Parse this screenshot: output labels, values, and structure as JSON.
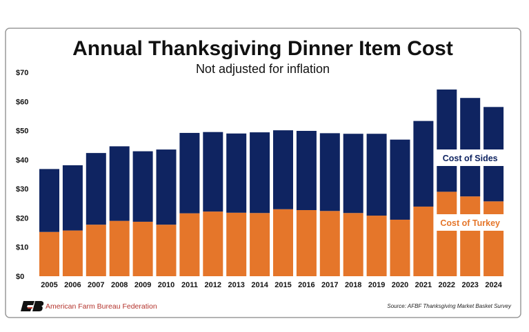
{
  "chart_data": {
    "type": "bar",
    "stacked": true,
    "title": "Annual Thanksgiving Dinner Item Cost",
    "subtitle": "Not adjusted for inflation",
    "xlabel": "",
    "ylabel": "",
    "ylim": [
      0,
      70
    ],
    "yticks": [
      "$0",
      "$10",
      "$20",
      "$30",
      "$40",
      "$50",
      "$60",
      "$70"
    ],
    "grid": false,
    "categories": [
      "2005",
      "2006",
      "2007",
      "2008",
      "2009",
      "2010",
      "2011",
      "2012",
      "2013",
      "2014",
      "2015",
      "2016",
      "2017",
      "2018",
      "2019",
      "2020",
      "2021",
      "2022",
      "2023",
      "2024"
    ],
    "series": [
      {
        "name": "Cost of Turkey",
        "color": "#e5762a",
        "values": [
          15.2,
          15.7,
          17.7,
          19.0,
          18.7,
          17.7,
          21.6,
          22.2,
          21.8,
          21.7,
          23.0,
          22.7,
          22.4,
          21.7,
          20.8,
          19.4,
          23.9,
          29.0,
          27.4,
          25.7
        ]
      },
      {
        "name": "Cost of Sides",
        "color": "#0f2461",
        "values": [
          21.6,
          22.4,
          24.6,
          25.6,
          24.2,
          25.8,
          27.6,
          27.3,
          27.2,
          27.7,
          27.1,
          27.2,
          26.7,
          27.2,
          28.1,
          27.5,
          29.4,
          35.1,
          33.8,
          32.4
        ]
      }
    ],
    "totals": [
      36.8,
      38.1,
      42.3,
      44.6,
      42.9,
      43.5,
      49.2,
      49.5,
      49.0,
      49.4,
      50.1,
      49.9,
      49.1,
      48.9,
      48.9,
      46.9,
      53.3,
      64.1,
      61.2,
      58.1
    ],
    "legend": "inline-right"
  },
  "footer": {
    "organization": "American Farm Bureau Federation",
    "source": "Source: AFBF Thanksgiving Market Basket Survey"
  }
}
